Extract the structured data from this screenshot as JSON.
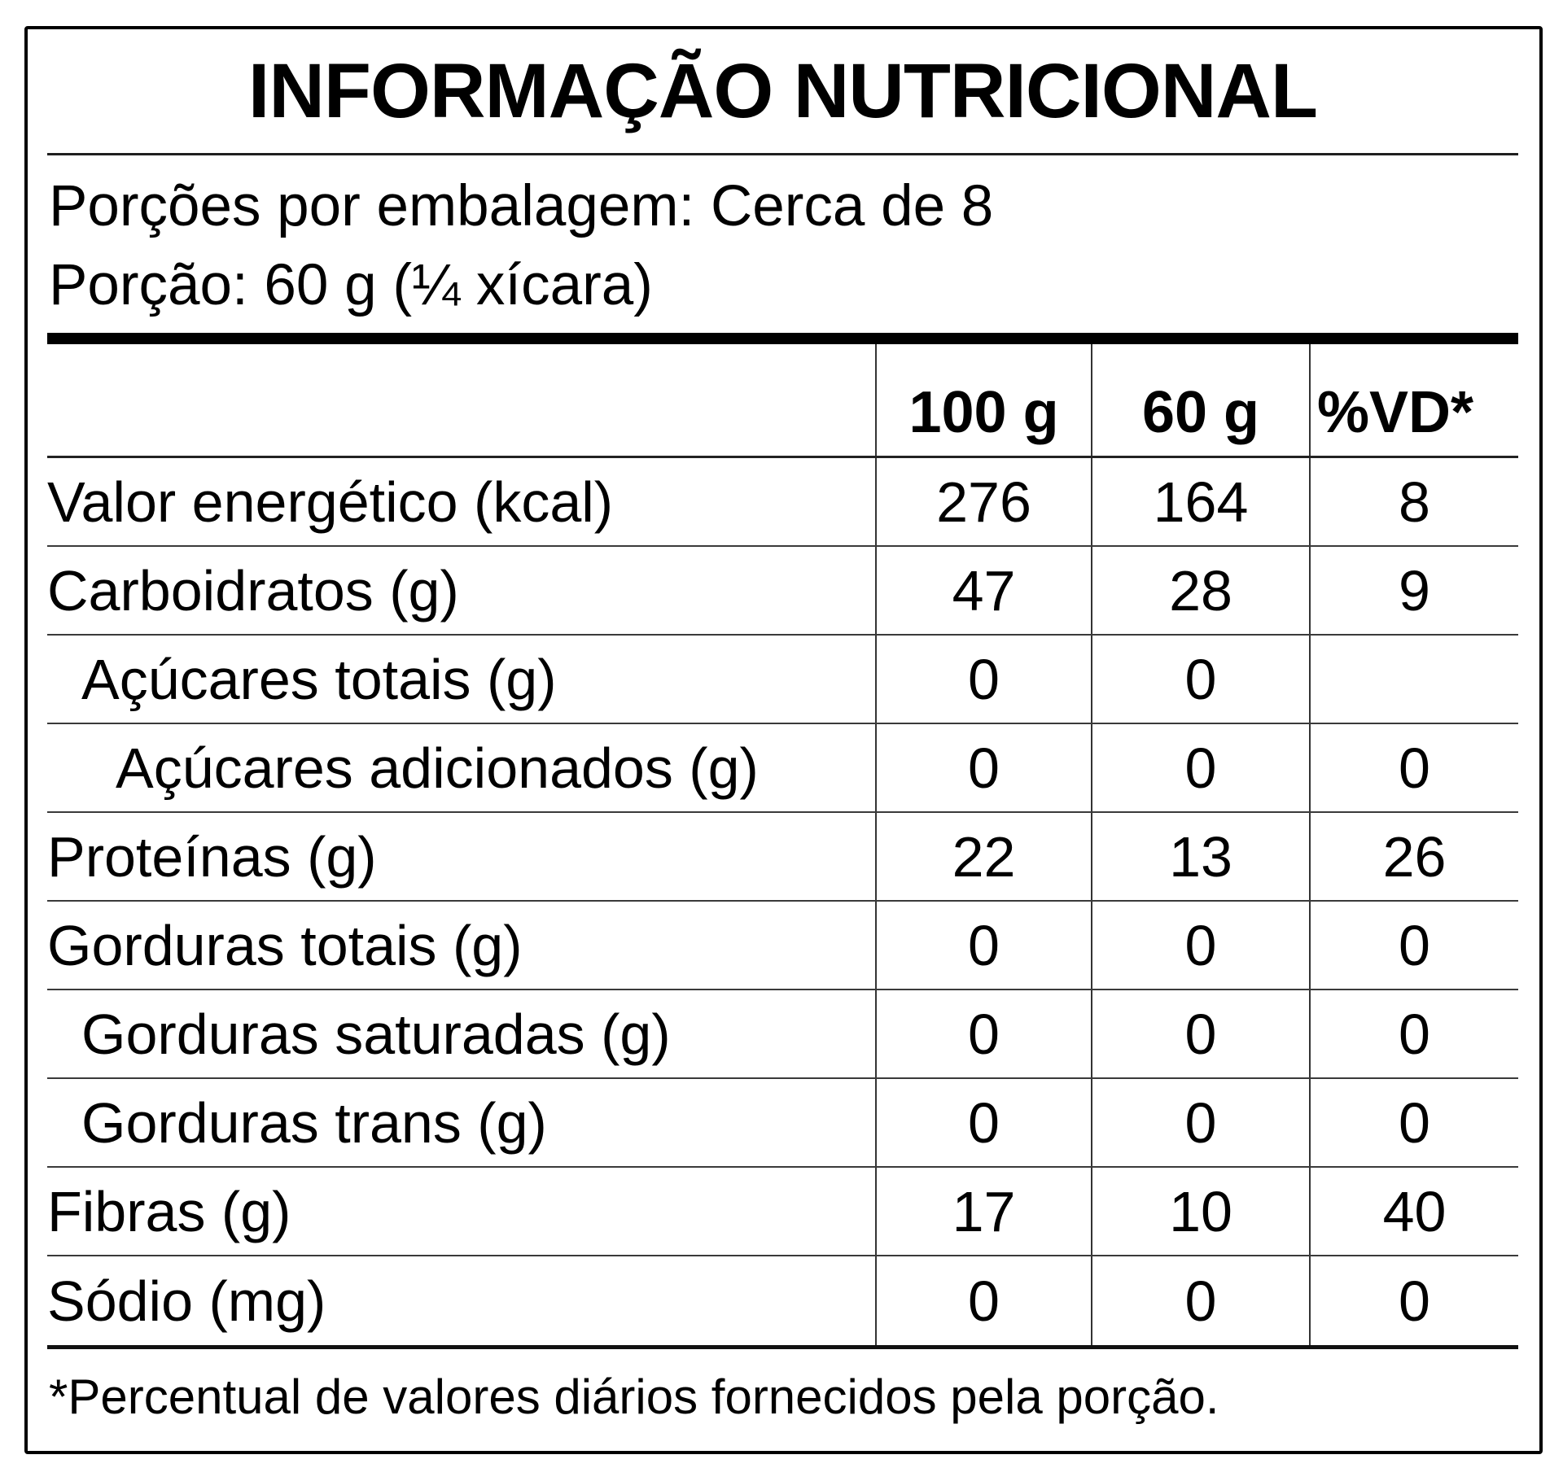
{
  "title": "INFORMAÇÃO NUTRICIONAL",
  "serving_info": {
    "portions_per_package": "Porções por embalagem: Cerca de 8",
    "portion_size": "Porção: 60 g (¼ xícara)"
  },
  "table": {
    "column_headers": {
      "per_100g": "100 g",
      "per_60g": "60 g",
      "percent_dv": "%VD*"
    },
    "rows": [
      {
        "label": "Valor energético (kcal)",
        "per100g": "276",
        "per60g": "164",
        "vd": "8"
      },
      {
        "label": "Carboidratos (g)",
        "per100g": "47",
        "per60g": "28",
        "vd": "9"
      },
      {
        "label": "Açúcares totais (g)",
        "per100g": "0",
        "per60g": "0",
        "vd": ""
      },
      {
        "label": "Açúcares adicionados (g)",
        "per100g": "0",
        "per60g": "0",
        "vd": "0"
      },
      {
        "label": "Proteínas (g)",
        "per100g": "22",
        "per60g": "13",
        "vd": "26"
      },
      {
        "label": "Gorduras totais (g)",
        "per100g": "0",
        "per60g": "0",
        "vd": "0"
      },
      {
        "label": "Gorduras saturadas (g)",
        "per100g": "0",
        "per60g": "0",
        "vd": "0"
      },
      {
        "label": "Gorduras trans (g)",
        "per100g": "0",
        "per60g": "0",
        "vd": "0"
      },
      {
        "label": "Fibras (g)",
        "per100g": "17",
        "per60g": "10",
        "vd": "40"
      },
      {
        "label": "Sódio (mg)",
        "per100g": "0",
        "per60g": "0",
        "vd": "0"
      }
    ]
  },
  "footnote": "*Percentual de valores diários fornecidos pela porção.",
  "colors": {
    "background": "#ffffff",
    "text": "#000000",
    "border": "#000000",
    "row_lines": "#333333"
  }
}
